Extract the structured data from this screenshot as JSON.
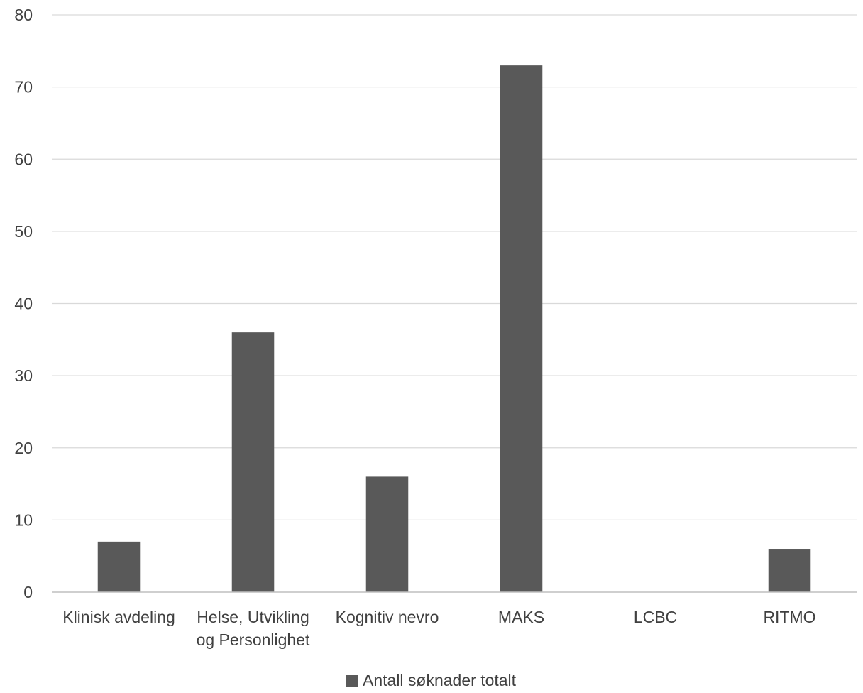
{
  "chart_data": {
    "type": "bar",
    "categories": [
      "Klinisk avdeling",
      "Helse, Utvikling og Personlighet",
      "Kognitiv nevro",
      "MAKS",
      "LCBC",
      "RITMO"
    ],
    "category_lines": [
      [
        "Klinisk avdeling"
      ],
      [
        "Helse, Utvikling",
        "og Personlighet"
      ],
      [
        "Kognitiv nevro"
      ],
      [
        "MAKS"
      ],
      [
        "LCBC"
      ],
      [
        "RITMO"
      ]
    ],
    "series": [
      {
        "name": "Antall søknader totalt",
        "values": [
          7,
          36,
          16,
          73,
          0,
          6
        ],
        "color": "#595959"
      }
    ],
    "ylim": [
      0,
      80
    ],
    "yticks": [
      0,
      10,
      20,
      30,
      40,
      50,
      60,
      70,
      80
    ],
    "grid": true,
    "legend_position": "bottom",
    "gridline_color": "#d9d9d9",
    "axis_line_color": "#bfbfbf"
  }
}
